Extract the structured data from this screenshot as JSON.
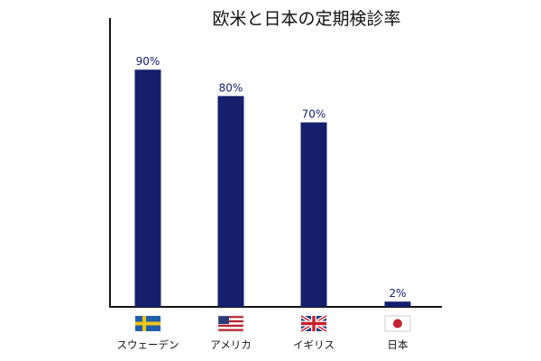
{
  "colors": {
    "bar": "#14206e",
    "axis": "#111111",
    "label": "#14206e"
  },
  "chart_data": {
    "type": "bar",
    "title": "欧米と日本の定期検診率",
    "xlabel": "",
    "ylabel": "",
    "ylim": [
      0,
      100
    ],
    "grid": false,
    "legend": "none",
    "categories": [
      "スウェーデン",
      "アメリカ",
      "イギリス",
      "日本"
    ],
    "flags": [
      "sweden-flag-icon",
      "usa-flag-icon",
      "uk-flag-icon",
      "japan-flag-icon"
    ],
    "values": [
      90,
      80,
      70,
      2
    ],
    "value_labels": [
      "90%",
      "80%",
      "70%",
      "2%"
    ]
  }
}
